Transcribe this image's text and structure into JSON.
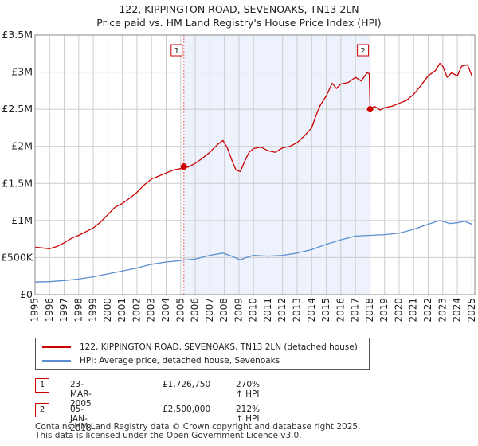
{
  "header": {
    "title_line1": "122, KIPPINGTON ROAD, SEVENOAKS, TN13 2LN",
    "title_line2": "Price paid vs. HM Land Registry's House Price Index (HPI)"
  },
  "colors": {
    "property": "#cc0000",
    "hpi": "#5b8fd0",
    "shade": "#eef2fc",
    "grid": "#cccccc",
    "marker_line": "#e06060"
  },
  "chart_data": {
    "type": "line",
    "title": "Price paid vs. HM Land Registry's House Price Index (HPI)",
    "xlabel": "",
    "ylabel": "",
    "xlim": [
      1995.0,
      2025.2
    ],
    "ylim": [
      0,
      3500000
    ],
    "x_ticks": [
      1995,
      1996,
      1997,
      1998,
      1999,
      2000,
      2001,
      2002,
      2003,
      2004,
      2005,
      2006,
      2007,
      2008,
      2009,
      2010,
      2011,
      2012,
      2013,
      2014,
      2015,
      2016,
      2017,
      2018,
      2019,
      2020,
      2021,
      2022,
      2023,
      2024,
      2025
    ],
    "y_ticks": [
      {
        "value": 0,
        "label": "£0"
      },
      {
        "value": 500000,
        "label": "£500K"
      },
      {
        "value": 1000000,
        "label": "£1M"
      },
      {
        "value": 1500000,
        "label": "£1.5M"
      },
      {
        "value": 2000000,
        "label": "£2M"
      },
      {
        "value": 2500000,
        "label": "£2.5M"
      },
      {
        "value": 3000000,
        "label": "£3M"
      },
      {
        "value": 3500000,
        "label": "£3.5M"
      }
    ],
    "grid": true,
    "shaded_span": [
      2005.22,
      2018.01
    ],
    "series": [
      {
        "name": "122, KIPPINGTON ROAD, SEVENOAKS, TN13 2LN (detached house)",
        "color": "#cc0000",
        "points": [
          [
            1995.0,
            640000
          ],
          [
            1995.5,
            630000
          ],
          [
            1996.0,
            620000
          ],
          [
            1996.5,
            650000
          ],
          [
            1997.0,
            700000
          ],
          [
            1997.5,
            760000
          ],
          [
            1998.0,
            800000
          ],
          [
            1998.5,
            850000
          ],
          [
            1999.0,
            900000
          ],
          [
            1999.5,
            980000
          ],
          [
            2000.0,
            1080000
          ],
          [
            2000.5,
            1180000
          ],
          [
            2001.0,
            1230000
          ],
          [
            2001.5,
            1300000
          ],
          [
            2002.0,
            1380000
          ],
          [
            2002.5,
            1480000
          ],
          [
            2003.0,
            1560000
          ],
          [
            2003.5,
            1600000
          ],
          [
            2004.0,
            1640000
          ],
          [
            2004.5,
            1680000
          ],
          [
            2005.0,
            1700000
          ],
          [
            2005.22,
            1726750
          ],
          [
            2005.5,
            1720000
          ],
          [
            2006.0,
            1770000
          ],
          [
            2006.5,
            1840000
          ],
          [
            2007.0,
            1920000
          ],
          [
            2007.5,
            2020000
          ],
          [
            2007.9,
            2080000
          ],
          [
            2008.2,
            1980000
          ],
          [
            2008.5,
            1820000
          ],
          [
            2008.8,
            1680000
          ],
          [
            2009.1,
            1660000
          ],
          [
            2009.4,
            1800000
          ],
          [
            2009.7,
            1920000
          ],
          [
            2010.0,
            1970000
          ],
          [
            2010.5,
            1990000
          ],
          [
            2011.0,
            1940000
          ],
          [
            2011.5,
            1920000
          ],
          [
            2012.0,
            1980000
          ],
          [
            2012.5,
            2000000
          ],
          [
            2013.0,
            2050000
          ],
          [
            2013.5,
            2140000
          ],
          [
            2014.0,
            2250000
          ],
          [
            2014.3,
            2420000
          ],
          [
            2014.6,
            2560000
          ],
          [
            2015.0,
            2680000
          ],
          [
            2015.4,
            2850000
          ],
          [
            2015.7,
            2780000
          ],
          [
            2016.0,
            2840000
          ],
          [
            2016.5,
            2860000
          ],
          [
            2017.0,
            2930000
          ],
          [
            2017.4,
            2880000
          ],
          [
            2017.8,
            2990000
          ],
          [
            2017.95,
            2980000
          ],
          [
            2018.01,
            2500000
          ],
          [
            2018.3,
            2540000
          ],
          [
            2018.7,
            2490000
          ],
          [
            2019.0,
            2520000
          ],
          [
            2019.5,
            2540000
          ],
          [
            2020.0,
            2580000
          ],
          [
            2020.5,
            2620000
          ],
          [
            2021.0,
            2700000
          ],
          [
            2021.5,
            2820000
          ],
          [
            2022.0,
            2950000
          ],
          [
            2022.5,
            3020000
          ],
          [
            2022.8,
            3120000
          ],
          [
            2023.0,
            3080000
          ],
          [
            2023.3,
            2930000
          ],
          [
            2023.6,
            2990000
          ],
          [
            2024.0,
            2950000
          ],
          [
            2024.3,
            3080000
          ],
          [
            2024.7,
            3100000
          ],
          [
            2025.0,
            2950000
          ]
        ]
      },
      {
        "name": "HPI: Average price, detached house, Sevenoaks",
        "color": "#5b8fd0",
        "points": [
          [
            1995.0,
            170000
          ],
          [
            1996.0,
            175000
          ],
          [
            1997.0,
            190000
          ],
          [
            1998.0,
            210000
          ],
          [
            1999.0,
            240000
          ],
          [
            2000.0,
            280000
          ],
          [
            2001.0,
            320000
          ],
          [
            2002.0,
            360000
          ],
          [
            2003.0,
            410000
          ],
          [
            2004.0,
            440000
          ],
          [
            2005.0,
            460000
          ],
          [
            2005.22,
            467000
          ],
          [
            2006.0,
            480000
          ],
          [
            2007.0,
            530000
          ],
          [
            2007.9,
            560000
          ],
          [
            2008.5,
            520000
          ],
          [
            2009.1,
            470000
          ],
          [
            2009.5,
            500000
          ],
          [
            2010.0,
            530000
          ],
          [
            2011.0,
            520000
          ],
          [
            2012.0,
            530000
          ],
          [
            2013.0,
            560000
          ],
          [
            2014.0,
            610000
          ],
          [
            2015.0,
            680000
          ],
          [
            2016.0,
            740000
          ],
          [
            2017.0,
            790000
          ],
          [
            2018.01,
            800000
          ],
          [
            2019.0,
            810000
          ],
          [
            2020.0,
            830000
          ],
          [
            2021.0,
            880000
          ],
          [
            2022.0,
            950000
          ],
          [
            2022.8,
            1000000
          ],
          [
            2023.5,
            960000
          ],
          [
            2024.0,
            970000
          ],
          [
            2024.5,
            990000
          ],
          [
            2025.0,
            950000
          ]
        ]
      }
    ],
    "annotations": [
      {
        "label": "1",
        "x": 2005.22,
        "y": 1726750
      },
      {
        "label": "2",
        "x": 2018.01,
        "y": 2500000
      }
    ]
  },
  "legend": {
    "items": [
      {
        "label": "122, KIPPINGTON ROAD, SEVENOAKS, TN13 2LN (detached house)"
      },
      {
        "label": "HPI: Average price, detached house, Sevenoaks"
      }
    ]
  },
  "transactions": [
    {
      "num": "1",
      "date": "23-MAR-2005",
      "price": "£1,726,750",
      "hpi": "270% ↑ HPI"
    },
    {
      "num": "2",
      "date": "05-JAN-2018",
      "price": "£2,500,000",
      "hpi": "212% ↑ HPI"
    }
  ],
  "footer": {
    "line1": "Contains HM Land Registry data © Crown copyright and database right 2025.",
    "line2": "This data is licensed under the Open Government Licence v3.0."
  }
}
